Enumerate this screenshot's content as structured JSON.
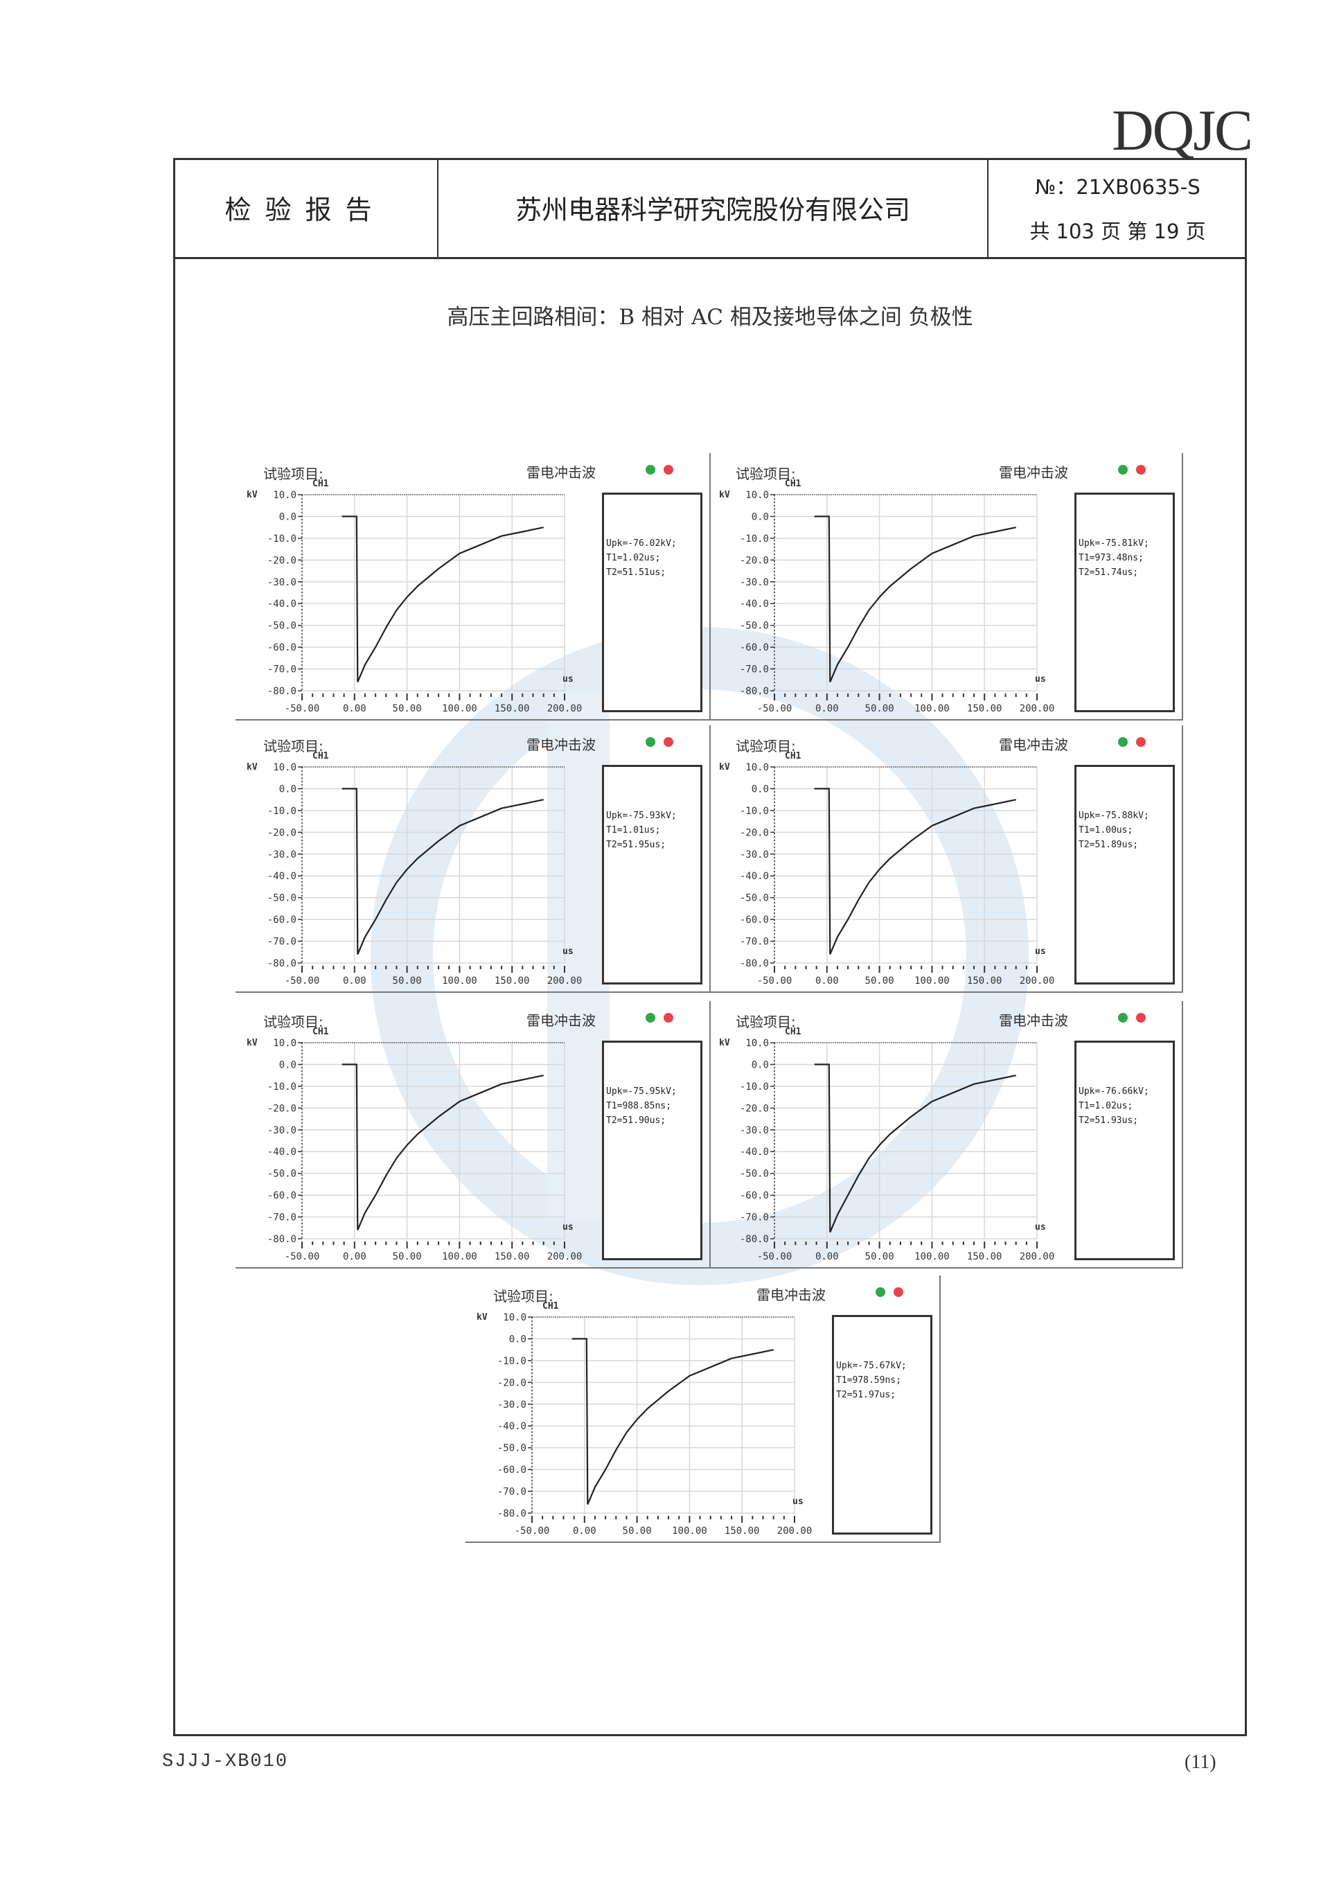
{
  "header": {
    "logo": "DQJC",
    "report_title": "检验报告",
    "company": "苏州电器科学研究院股份有限公司",
    "report_no": "№：21XB0635-S",
    "pages": "共 103 页   第 19 页"
  },
  "subtitle": "高压主回路相间：B 相对 AC 相及接地导体之间    负极性",
  "panel_labels": {
    "test_item": "试验项目:",
    "wave_type": "雷电冲击波",
    "channel": "CH1",
    "y_unit": "kV",
    "x_unit": "us"
  },
  "colors": {
    "indicator_green": "#2ea84a",
    "indicator_red": "#e8434b",
    "watermark": "#dfeaf3"
  },
  "chart_data": [
    {
      "type": "line",
      "xlim": [
        -50,
        200
      ],
      "ylim": [
        -80,
        10
      ],
      "grid": true,
      "xticks": [
        "-50.00",
        "0.00",
        "50.00",
        "100.00",
        "150.00",
        "200.00"
      ],
      "yticks": [
        "10.0",
        "0.0",
        "-10.0",
        "-20.0",
        "-30.0",
        "-40.0",
        "-50.0",
        "-60.0",
        "-70.0",
        "-80.0"
      ],
      "readout": [
        "Upk=-76.02kV;",
        "T1=1.02us;",
        "T2=51.51us;"
      ],
      "x": [
        -12,
        0,
        2,
        3,
        10,
        20,
        30,
        40,
        50,
        60,
        80,
        100,
        120,
        140,
        160,
        180
      ],
      "y": [
        0,
        0,
        0,
        -76,
        -68,
        -60,
        -51,
        -43,
        -37,
        -32,
        -24,
        -17,
        -13,
        -9,
        -7,
        -5
      ]
    },
    {
      "type": "line",
      "xlim": [
        -50,
        200
      ],
      "ylim": [
        -80,
        10
      ],
      "grid": true,
      "xticks": [
        "-50.00",
        "0.00",
        "50.00",
        "100.00",
        "150.00",
        "200.00"
      ],
      "yticks": [
        "10.0",
        "0.0",
        "-10.0",
        "-20.0",
        "-30.0",
        "-40.0",
        "-50.0",
        "-60.0",
        "-70.0",
        "-80.0"
      ],
      "readout": [
        "Upk=-75.81kV;",
        "T1=973.48ns;",
        "T2=51.74us;"
      ],
      "x": [
        -12,
        0,
        2,
        3,
        10,
        20,
        30,
        40,
        50,
        60,
        80,
        100,
        120,
        140,
        160,
        180
      ],
      "y": [
        0,
        0,
        0,
        -76,
        -68,
        -60,
        -51,
        -43,
        -37,
        -32,
        -24,
        -17,
        -13,
        -9,
        -7,
        -5
      ]
    },
    {
      "type": "line",
      "xlim": [
        -50,
        200
      ],
      "ylim": [
        -80,
        10
      ],
      "grid": true,
      "xticks": [
        "-50.00",
        "0.00",
        "50.00",
        "100.00",
        "150.00",
        "200.00"
      ],
      "yticks": [
        "10.0",
        "0.0",
        "-10.0",
        "-20.0",
        "-30.0",
        "-40.0",
        "-50.0",
        "-60.0",
        "-70.0",
        "-80.0"
      ],
      "readout": [
        "Upk=-75.93kV;",
        "T1=1.01us;",
        "T2=51.95us;"
      ],
      "x": [
        -12,
        0,
        2,
        3,
        10,
        20,
        30,
        40,
        50,
        60,
        80,
        100,
        120,
        140,
        160,
        180
      ],
      "y": [
        0,
        0,
        0,
        -76,
        -68,
        -60,
        -51,
        -43,
        -37,
        -32,
        -24,
        -17,
        -13,
        -9,
        -7,
        -5
      ]
    },
    {
      "type": "line",
      "xlim": [
        -50,
        200
      ],
      "ylim": [
        -80,
        10
      ],
      "grid": true,
      "xticks": [
        "-50.00",
        "0.00",
        "50.00",
        "100.00",
        "150.00",
        "200.00"
      ],
      "yticks": [
        "10.0",
        "0.0",
        "-10.0",
        "-20.0",
        "-30.0",
        "-40.0",
        "-50.0",
        "-60.0",
        "-70.0",
        "-80.0"
      ],
      "readout": [
        "Upk=-75.88kV;",
        "T1=1.00us;",
        "T2=51.89us;"
      ],
      "x": [
        -12,
        0,
        2,
        3,
        10,
        20,
        30,
        40,
        50,
        60,
        80,
        100,
        120,
        140,
        160,
        180
      ],
      "y": [
        0,
        0,
        0,
        -76,
        -68,
        -60,
        -51,
        -43,
        -37,
        -32,
        -24,
        -17,
        -13,
        -9,
        -7,
        -5
      ]
    },
    {
      "type": "line",
      "xlim": [
        -50,
        200
      ],
      "ylim": [
        -80,
        10
      ],
      "grid": true,
      "xticks": [
        "-50.00",
        "0.00",
        "50.00",
        "100.00",
        "150.00",
        "200.00"
      ],
      "yticks": [
        "10.0",
        "0.0",
        "-10.0",
        "-20.0",
        "-30.0",
        "-40.0",
        "-50.0",
        "-60.0",
        "-70.0",
        "-80.0"
      ],
      "readout": [
        "Upk=-75.95kV;",
        "T1=988.85ns;",
        "T2=51.90us;"
      ],
      "x": [
        -12,
        0,
        2,
        3,
        10,
        20,
        30,
        40,
        50,
        60,
        80,
        100,
        120,
        140,
        160,
        180
      ],
      "y": [
        0,
        0,
        0,
        -76,
        -68,
        -60,
        -51,
        -43,
        -37,
        -32,
        -24,
        -17,
        -13,
        -9,
        -7,
        -5
      ]
    },
    {
      "type": "line",
      "xlim": [
        -50,
        200
      ],
      "ylim": [
        -80,
        10
      ],
      "grid": true,
      "xticks": [
        "-50.00",
        "0.00",
        "50.00",
        "100.00",
        "150.00",
        "200.00"
      ],
      "yticks": [
        "10.0",
        "0.0",
        "-10.0",
        "-20.0",
        "-30.0",
        "-40.0",
        "-50.0",
        "-60.0",
        "-70.0",
        "-80.0"
      ],
      "readout": [
        "Upk=-76.66kV;",
        "T1=1.02us;",
        "T2=51.93us;"
      ],
      "x": [
        -12,
        0,
        2,
        3,
        10,
        20,
        30,
        40,
        50,
        60,
        80,
        100,
        120,
        140,
        160,
        180
      ],
      "y": [
        0,
        0,
        0,
        -77,
        -69,
        -60,
        -51,
        -43,
        -37,
        -32,
        -24,
        -17,
        -13,
        -9,
        -7,
        -5
      ]
    },
    {
      "type": "line",
      "xlim": [
        -50,
        200
      ],
      "ylim": [
        -80,
        10
      ],
      "grid": true,
      "xticks": [
        "-50.00",
        "0.00",
        "50.00",
        "100.00",
        "150.00",
        "200.00"
      ],
      "yticks": [
        "10.0",
        "0.0",
        "-10.0",
        "-20.0",
        "-30.0",
        "-40.0",
        "-50.0",
        "-60.0",
        "-70.0",
        "-80.0"
      ],
      "readout": [
        "Upk=-75.67kV;",
        "T1=978.59ns;",
        "T2=51.97us;"
      ],
      "x": [
        -12,
        0,
        2,
        3,
        10,
        20,
        30,
        40,
        50,
        60,
        80,
        100,
        120,
        140,
        160,
        180
      ],
      "y": [
        0,
        0,
        0,
        -76,
        -68,
        -60,
        -51,
        -43,
        -37,
        -32,
        -24,
        -17,
        -13,
        -9,
        -7,
        -5
      ]
    }
  ],
  "footer": {
    "form_code": "SJJJ-XB010",
    "page_mark": "(11)"
  }
}
